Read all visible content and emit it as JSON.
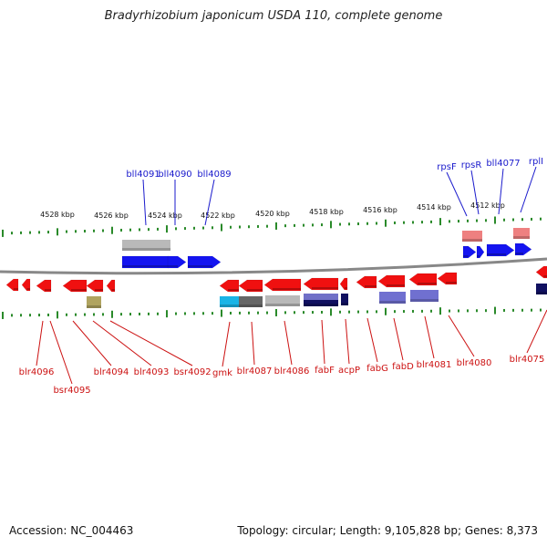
{
  "title": "Bradyrhizobium japonicum USDA 110, complete genome",
  "footer": {
    "accession": "Accession: NC_004463",
    "topology": "Topology: circular; Length: 9,105,828 bp; Genes: 8,373"
  },
  "colors": {
    "upper_label": "#1a1acc",
    "lower_label": "#cc1111",
    "backbone": "#888888",
    "tick": "#2a8a2a"
  },
  "scale_labels": [
    "4528 kbp",
    "4526 kbp",
    "4524 kbp",
    "4522 kbp",
    "4520 kbp",
    "4518 kbp",
    "4516 kbp",
    "4514 kbp",
    "4512 kbp"
  ],
  "upper_genes": [
    "bll4091",
    "bll4090",
    "bll4089",
    "rpsF",
    "rpsR",
    "bll4077",
    "rplI"
  ],
  "lower_genes": [
    "blr4096",
    "bsr4095",
    "blr4094",
    "blr4093",
    "bsr4092",
    "gmk",
    "blr4087",
    "blr4086",
    "fabF",
    "acpP",
    "fabG",
    "fabD",
    "blr4081",
    "blr4080",
    "blr4075"
  ]
}
